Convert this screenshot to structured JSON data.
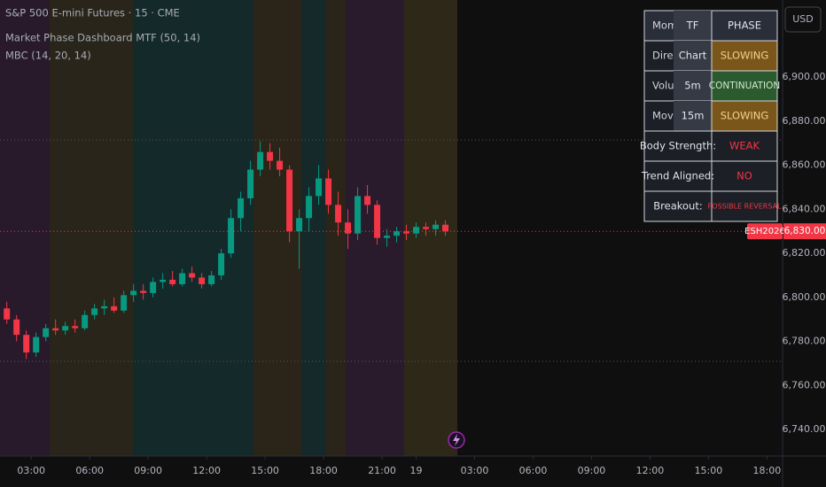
{
  "chart_data": {
    "type": "candlestick",
    "title": "S&P 500 E-mini Futures · 15 · CME",
    "indicators": [
      "Market Phase Dashboard MTF (50, 14)",
      "MBC (14, 20, 14)"
    ],
    "currency": "USD",
    "symbol_tag": "ESH2026",
    "last_price": {
      "value": 6830,
      "label": "6,830.00"
    },
    "up_color": "#089981",
    "down_color": "#f23645",
    "grid": false,
    "x": [
      -5,
      -3,
      -1,
      1,
      3,
      5,
      7,
      9,
      11,
      13,
      15,
      17,
      19,
      21,
      23,
      25,
      27,
      29,
      31,
      33,
      35,
      37,
      39,
      41,
      43,
      45,
      47,
      49,
      51,
      53,
      55,
      57,
      59,
      61,
      63,
      65,
      67,
      69,
      71,
      73,
      75,
      77,
      79,
      81,
      83,
      85
    ],
    "open": [
      6795,
      6790,
      6783,
      6775,
      6782,
      6786,
      6785,
      6787,
      6786,
      6792,
      6795,
      6796,
      6794,
      6801,
      6803,
      6802,
      6807,
      6808,
      6806,
      6811,
      6809,
      6806,
      6810,
      6820,
      6836,
      6845,
      6858,
      6866,
      6862,
      6858,
      6830,
      6836,
      6846,
      6854,
      6842,
      6834,
      6829,
      6846,
      6842,
      6827,
      6828,
      6830,
      6829,
      6832,
      6831,
      6833
    ],
    "high": [
      6798,
      6792,
      6785,
      6784,
      6788,
      6790,
      6789,
      6790,
      6794,
      6797,
      6799,
      6800,
      6803,
      6806,
      6806,
      6809,
      6811,
      6812,
      6813,
      6814,
      6811,
      6812,
      6822,
      6840,
      6848,
      6862,
      6871,
      6870,
      6868,
      6860,
      6840,
      6850,
      6860,
      6858,
      6848,
      6840,
      6850,
      6851,
      6844,
      6831,
      6832,
      6833,
      6834,
      6834,
      6835,
      6835
    ],
    "low": [
      6788,
      6780,
      6772,
      6773,
      6780,
      6783,
      6783,
      6784,
      6785,
      6790,
      6792,
      6793,
      6793,
      6798,
      6799,
      6800,
      6804,
      6805,
      6805,
      6807,
      6804,
      6805,
      6808,
      6818,
      6830,
      6842,
      6855,
      6858,
      6855,
      6825,
      6813,
      6830,
      6842,
      6838,
      6828,
      6822,
      6826,
      6838,
      6824,
      6823,
      6825,
      6826,
      6827,
      6828,
      6828,
      6828
    ],
    "close": [
      6790,
      6783,
      6775,
      6782,
      6786,
      6785,
      6787,
      6786,
      6792,
      6795,
      6796,
      6794,
      6801,
      6803,
      6802,
      6807,
      6808,
      6806,
      6811,
      6809,
      6806,
      6810,
      6820,
      6836,
      6845,
      6858,
      6866,
      6862,
      6858,
      6830,
      6836,
      6846,
      6854,
      6842,
      6834,
      6829,
      6846,
      6842,
      6827,
      6828,
      6830,
      6829,
      6832,
      6831,
      6833,
      6830
    ],
    "xlim": [
      -6.4,
      154.2
    ],
    "xticks": [
      {
        "value": 0,
        "label": "03:00"
      },
      {
        "value": 12,
        "label": "06:00"
      },
      {
        "value": 24,
        "label": "09:00"
      },
      {
        "value": 36,
        "label": "12:00"
      },
      {
        "value": 48,
        "label": "15:00"
      },
      {
        "value": 60,
        "label": "18:00"
      },
      {
        "value": 72,
        "label": "21:00"
      },
      {
        "value": 79,
        "label": "19"
      },
      {
        "value": 91,
        "label": "03:00"
      },
      {
        "value": 103,
        "label": "06:00"
      },
      {
        "value": 115,
        "label": "09:00"
      },
      {
        "value": 127,
        "label": "12:00"
      },
      {
        "value": 139,
        "label": "15:00"
      },
      {
        "value": 151,
        "label": "18:00"
      }
    ],
    "ylim": [
      6728,
      6935
    ],
    "yticks": [
      {
        "value": 6740,
        "label": "6,740.00"
      },
      {
        "value": 6760,
        "label": "6,760.00"
      },
      {
        "value": 6780,
        "label": "6,780.00"
      },
      {
        "value": 6800,
        "label": "6,800.00"
      },
      {
        "value": 6820,
        "label": "6,820.00"
      },
      {
        "value": 6840,
        "label": "6,840.00"
      },
      {
        "value": 6860,
        "label": "6,860.00"
      },
      {
        "value": 6880,
        "label": "6,880.00"
      },
      {
        "value": 6900,
        "label": "6,900.00"
      }
    ]
  },
  "dashboard": {
    "rows": [
      [
        "Mome",
        "TF",
        "PHASE"
      ],
      [
        "Direc",
        "Chart",
        "SLOWING"
      ],
      [
        "Volu",
        "5m",
        "CONTINUATION"
      ],
      [
        "Move",
        "15m",
        "SLOWING"
      ],
      [
        "Body Strength:",
        "WEAK"
      ],
      [
        "Trend Aligned:",
        "NO"
      ],
      [
        "Breakout:",
        "POSSIBLE REVERSAL"
      ]
    ]
  }
}
